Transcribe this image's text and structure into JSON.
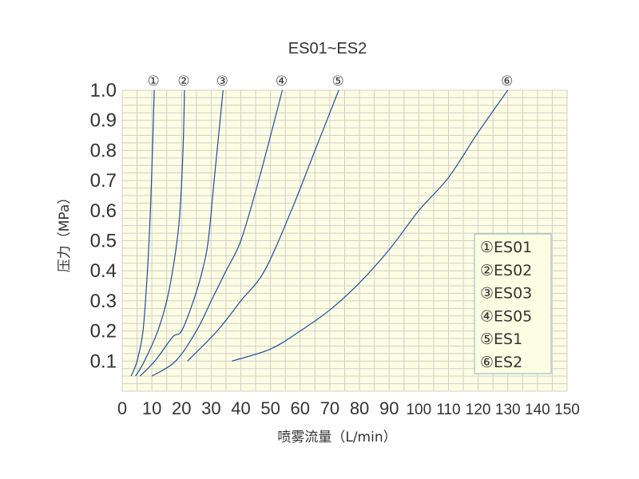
{
  "chart_data": {
    "type": "line",
    "title": "ES01~ES2",
    "xlabel": "喷雾流量（L/min）",
    "ylabel": "压力（MPa）",
    "xlim": [
      0,
      150
    ],
    "ylim": [
      0,
      1.0
    ],
    "x_ticks": [
      "0",
      "10",
      "20",
      "30",
      "40",
      "50",
      "60",
      "70",
      "80",
      "90",
      "100",
      "110",
      "120",
      "130",
      "140",
      "150"
    ],
    "y_ticks": [
      "0.1",
      "0.2",
      "0.3",
      "0.4",
      "0.5",
      "0.6",
      "0.7",
      "0.8",
      "0.9",
      "1.0"
    ],
    "grid": true,
    "background_color": "#fdfde3",
    "grid_color": "#cfcfcf",
    "line_color": "#1f4e9c",
    "legend_position": "right",
    "legend": [
      "①ES01",
      "②ES02",
      "③ES03",
      "④ES05",
      "⑤ES1",
      "⑥ES2"
    ],
    "curve_labels": [
      "①",
      "②",
      "③",
      "④",
      "⑤",
      "⑥"
    ],
    "series": [
      {
        "name": "①ES01",
        "points": [
          [
            3,
            0.05
          ],
          [
            5,
            0.1
          ],
          [
            7,
            0.2
          ],
          [
            8.5,
            0.4
          ],
          [
            9.5,
            0.6
          ],
          [
            10.2,
            0.8
          ],
          [
            10.8,
            1.0
          ]
        ]
      },
      {
        "name": "②ES02",
        "points": [
          [
            4.5,
            0.05
          ],
          [
            7.5,
            0.1
          ],
          [
            12,
            0.2
          ],
          [
            15,
            0.3
          ],
          [
            17,
            0.4
          ],
          [
            18.5,
            0.5
          ],
          [
            19.5,
            0.6
          ],
          [
            20.5,
            0.8
          ],
          [
            21,
            1.0
          ]
        ]
      },
      {
        "name": "③ES03",
        "points": [
          [
            6,
            0.05
          ],
          [
            11,
            0.1
          ],
          [
            17,
            0.18
          ],
          [
            20,
            0.2
          ],
          [
            24,
            0.3
          ],
          [
            27,
            0.4
          ],
          [
            29,
            0.5
          ],
          [
            31,
            0.7
          ],
          [
            34,
            1.0
          ]
        ]
      },
      {
        "name": "④ES05",
        "points": [
          [
            10,
            0.05
          ],
          [
            18,
            0.1
          ],
          [
            25,
            0.2
          ],
          [
            30,
            0.3
          ],
          [
            35,
            0.4
          ],
          [
            40,
            0.5
          ],
          [
            46,
            0.7
          ],
          [
            54,
            1.0
          ]
        ]
      },
      {
        "name": "⑤ES1",
        "points": [
          [
            22,
            0.1
          ],
          [
            32,
            0.2
          ],
          [
            40,
            0.3
          ],
          [
            48,
            0.4
          ],
          [
            57,
            0.6
          ],
          [
            65,
            0.8
          ],
          [
            73,
            1.0
          ]
        ]
      },
      {
        "name": "⑥ES2",
        "points": [
          [
            37,
            0.1
          ],
          [
            50,
            0.14
          ],
          [
            60,
            0.2
          ],
          [
            70,
            0.27
          ],
          [
            80,
            0.36
          ],
          [
            90,
            0.47
          ],
          [
            100,
            0.6
          ],
          [
            110,
            0.71
          ],
          [
            120,
            0.86
          ],
          [
            130,
            1.0
          ]
        ]
      }
    ]
  }
}
